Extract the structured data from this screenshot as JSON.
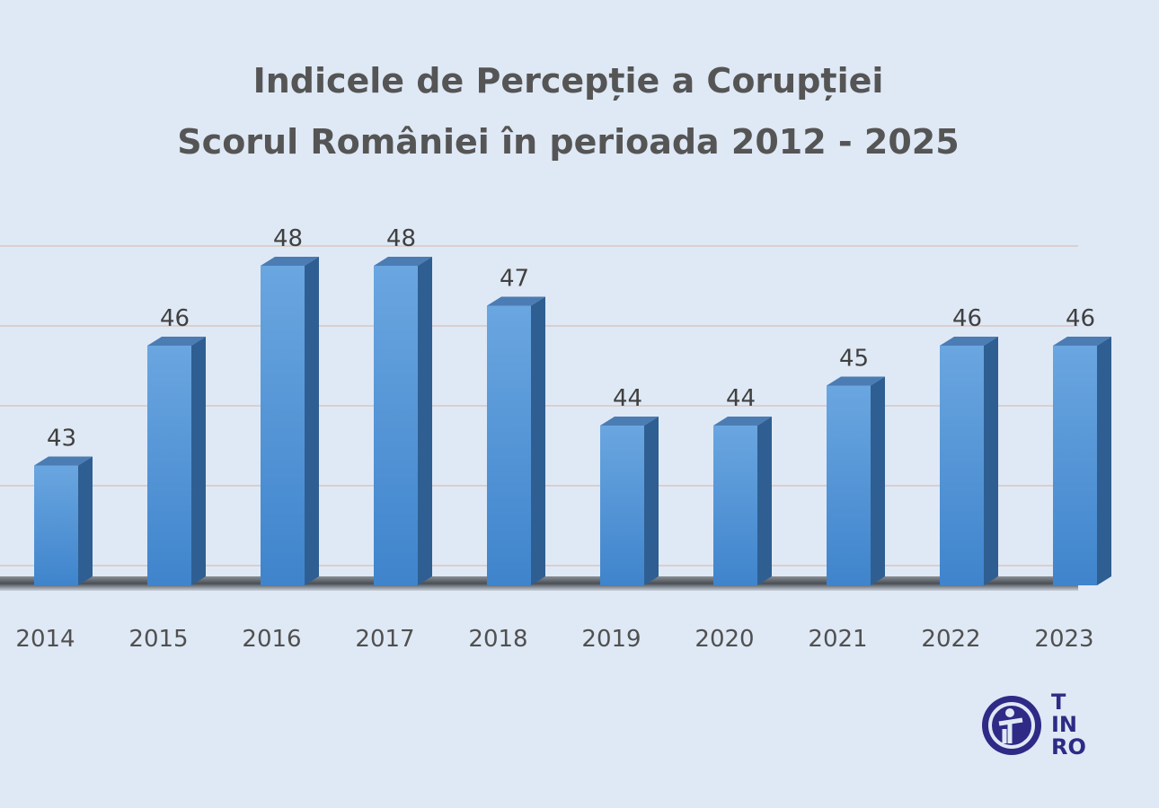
{
  "chart_data": {
    "type": "bar",
    "title": "Indicele de Percepție a Corupției",
    "subtitle": "Scorul României în perioada 2012 - 2025",
    "categories": [
      "2014",
      "2015",
      "2016",
      "2017",
      "2018",
      "2019",
      "2020",
      "2021",
      "2022",
      "2023"
    ],
    "values": [
      43,
      46,
      48,
      48,
      47,
      44,
      44,
      45,
      46,
      46
    ],
    "ylim": [
      40,
      49
    ],
    "gridlines": [
      40,
      42,
      44,
      46,
      48
    ],
    "grid": true,
    "style": "3d-column",
    "bar_color": "#4f8fd4",
    "background": "#dfe9f5"
  },
  "logo": {
    "lines": [
      "T",
      "IN",
      "RO"
    ],
    "color": "#2e2a86"
  }
}
